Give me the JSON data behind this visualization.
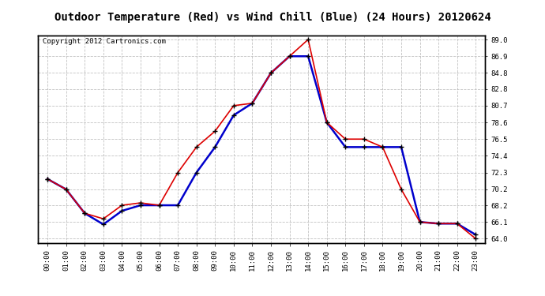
{
  "title": "Outdoor Temperature (Red) vs Wind Chill (Blue) (24 Hours) 20120624",
  "copyright": "Copyright 2012 Cartronics.com",
  "hours": [
    "00:00",
    "01:00",
    "02:00",
    "03:00",
    "04:00",
    "05:00",
    "06:00",
    "07:00",
    "08:00",
    "09:00",
    "10:00",
    "11:00",
    "12:00",
    "13:00",
    "14:00",
    "15:00",
    "16:00",
    "17:00",
    "18:00",
    "19:00",
    "20:00",
    "21:00",
    "22:00",
    "23:00"
  ],
  "temp_red": [
    71.5,
    70.2,
    67.2,
    66.5,
    68.2,
    68.5,
    68.2,
    72.3,
    75.5,
    77.5,
    80.7,
    81.0,
    84.8,
    86.9,
    89.0,
    78.6,
    76.5,
    76.5,
    75.5,
    70.2,
    66.1,
    65.9,
    65.9,
    64.0
  ],
  "wind_blue": [
    71.5,
    70.2,
    67.2,
    65.8,
    67.5,
    68.2,
    68.2,
    68.2,
    72.3,
    75.5,
    79.5,
    81.0,
    84.8,
    86.9,
    86.9,
    78.6,
    75.5,
    75.5,
    75.5,
    75.5,
    66.1,
    65.9,
    65.9,
    64.5
  ],
  "ylim_min": 63.5,
  "ylim_max": 89.5,
  "yticks": [
    64.0,
    66.1,
    68.2,
    70.2,
    72.3,
    74.4,
    76.5,
    78.6,
    80.7,
    82.8,
    84.8,
    86.9,
    89.0
  ],
  "bg_color": "#ffffff",
  "grid_color": "#bbbbbb",
  "red_color": "#dd0000",
  "blue_color": "#0000cc",
  "title_fontsize": 10,
  "copyright_fontsize": 6.5
}
